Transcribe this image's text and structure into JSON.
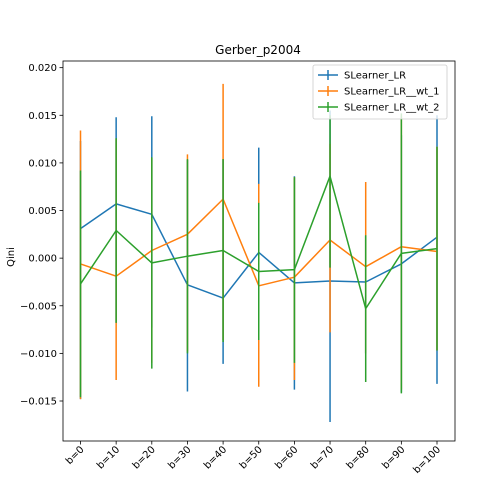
{
  "chart_data": {
    "type": "line",
    "title": "Gerber_p2004",
    "xlabel": "",
    "ylabel": "Qini",
    "categories": [
      "b=0",
      "b=10",
      "b=20",
      "b=30",
      "b=40",
      "b=50",
      "b=60",
      "b=70",
      "b=80",
      "b=90",
      "b=100"
    ],
    "ylim": [
      -0.0192,
      0.0207
    ],
    "yticks": [
      -0.015,
      -0.01,
      -0.005,
      0.0,
      0.005,
      0.01,
      0.015,
      0.02
    ],
    "ytick_labels": [
      "−0.015",
      "−0.010",
      "−0.005",
      "0.000",
      "0.005",
      "0.010",
      "0.015",
      "0.020"
    ],
    "grid": false,
    "legend_position": "top-right",
    "series": [
      {
        "name": "SLearner_LR",
        "color": "#1f77b4",
        "values": [
          0.0031,
          0.0057,
          0.0046,
          -0.0028,
          -0.0042,
          0.0006,
          -0.0026,
          -0.0024,
          -0.0025,
          -0.0006,
          0.0022
        ],
        "err_low": [
          -0.0148,
          -0.0068,
          -0.0073,
          -0.014,
          -0.0111,
          -0.0088,
          -0.0138,
          -0.0172,
          -0.01,
          -0.0141,
          -0.0132
        ],
        "err_high": [
          0.0123,
          0.0148,
          0.0149,
          0.0103,
          0.0104,
          0.0116,
          0.0086,
          0.0155,
          0.0023,
          0.0129,
          0.015
        ]
      },
      {
        "name": "SLearner_LR__wt_1",
        "color": "#ff7f0e",
        "values": [
          -0.0006,
          -0.0019,
          0.0008,
          0.0025,
          0.0062,
          -0.0029,
          -0.002,
          0.0019,
          -0.0009,
          0.0012,
          0.0007
        ],
        "err_low": [
          -0.0148,
          -0.0128,
          -0.011,
          -0.0098,
          -0.0086,
          -0.0135,
          -0.0128,
          -0.0078,
          -0.01,
          -0.0138,
          -0.0097
        ],
        "err_high": [
          0.0134,
          0.0125,
          0.0105,
          0.0109,
          0.0183,
          0.0078,
          0.0085,
          0.012,
          0.008,
          0.015,
          0.0117
        ]
      },
      {
        "name": "SLearner_LR__wt_2",
        "color": "#2ca02c",
        "values": [
          -0.0027,
          0.0029,
          -0.0005,
          0.0002,
          0.0008,
          -0.0014,
          -0.0012,
          0.0086,
          -0.0053,
          0.0005,
          0.001
        ],
        "err_low": [
          -0.0146,
          -0.0068,
          -0.0116,
          -0.01,
          -0.0088,
          -0.0086,
          -0.011,
          -0.001,
          -0.013,
          -0.0142,
          -0.0097
        ],
        "err_high": [
          0.0092,
          0.0126,
          0.0106,
          0.0104,
          0.0104,
          0.0058,
          0.0085,
          0.015,
          0.0024,
          0.0152,
          0.0117
        ]
      }
    ]
  }
}
